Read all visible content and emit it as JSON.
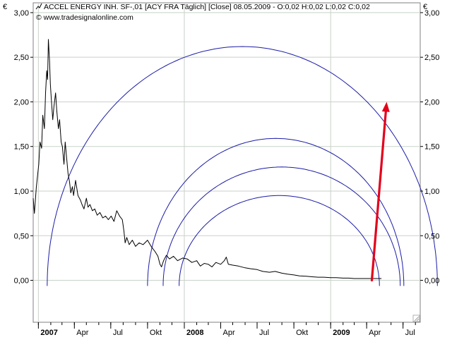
{
  "header": {
    "title": "ACCEL ENERGY  INH. SF-,01 [ACY FRA  Täglich] [Close] 08.05.2009 - O:0,02 H:0,02 L:0,02 C:0,02",
    "source": "© www.tradesignalonline.com",
    "currency_left": "€",
    "currency_right": "€"
  },
  "chart_data": {
    "type": "line",
    "title": "ACCEL ENERGY  INH. SF-,01 [ACY FRA  Täglich] [Close] 08.05.2009 - O:0,02 H:0,02 L:0,02 C:0,02",
    "xlabel": "",
    "ylabel": "€",
    "ylim": [
      -0.47,
      3.11
    ],
    "xlim": [
      "2006-12-19",
      "2009-08-13"
    ],
    "grid": true,
    "y_ticks": [
      {
        "value": 0.0,
        "label": "0,00"
      },
      {
        "value": 0.5,
        "label": "0,50"
      },
      {
        "value": 1.0,
        "label": "1,00"
      },
      {
        "value": 1.5,
        "label": "1,50"
      },
      {
        "value": 2.0,
        "label": "2,00"
      },
      {
        "value": 2.5,
        "label": "2,50"
      },
      {
        "value": 3.0,
        "label": "3,00"
      }
    ],
    "x_ticks": [
      {
        "date": "2007-01-01",
        "label": "2007",
        "bold": true
      },
      {
        "date": "2007-04-01",
        "label": "Apr",
        "bold": false
      },
      {
        "date": "2007-07-01",
        "label": "Jul",
        "bold": false
      },
      {
        "date": "2007-10-01",
        "label": "Okt",
        "bold": false
      },
      {
        "date": "2008-01-01",
        "label": "2008",
        "bold": true
      },
      {
        "date": "2008-04-01",
        "label": "Apr",
        "bold": false
      },
      {
        "date": "2008-07-01",
        "label": "Jul",
        "bold": false
      },
      {
        "date": "2008-10-01",
        "label": "Okt",
        "bold": false
      },
      {
        "date": "2009-01-01",
        "label": "2009",
        "bold": true
      },
      {
        "date": "2009-04-01",
        "label": "Apr",
        "bold": false
      },
      {
        "date": "2009-07-01",
        "label": "Jul",
        "bold": false
      }
    ],
    "x_gridlines": [
      "2007-01-01",
      "2008-01-01",
      "2009-01-01"
    ],
    "series": [
      {
        "color": "#000000",
        "points": [
          [
            "2006-12-19",
            0.92
          ],
          [
            "2006-12-22",
            0.75
          ],
          [
            "2006-12-27",
            1.05
          ],
          [
            "2007-01-02",
            1.3
          ],
          [
            "2007-01-05",
            1.55
          ],
          [
            "2007-01-09",
            1.48
          ],
          [
            "2007-01-12",
            1.85
          ],
          [
            "2007-01-16",
            1.7
          ],
          [
            "2007-01-19",
            2.1
          ],
          [
            "2007-01-22",
            2.35
          ],
          [
            "2007-01-24",
            2.25
          ],
          [
            "2007-01-26",
            2.7
          ],
          [
            "2007-01-29",
            2.45
          ],
          [
            "2007-01-31",
            2.2
          ],
          [
            "2007-02-02",
            2.05
          ],
          [
            "2007-02-06",
            1.8
          ],
          [
            "2007-02-09",
            1.95
          ],
          [
            "2007-02-13",
            2.1
          ],
          [
            "2007-02-16",
            1.9
          ],
          [
            "2007-02-20",
            1.7
          ],
          [
            "2007-02-23",
            1.8
          ],
          [
            "2007-02-27",
            1.55
          ],
          [
            "2007-03-02",
            1.5
          ],
          [
            "2007-03-06",
            1.3
          ],
          [
            "2007-03-09",
            1.55
          ],
          [
            "2007-03-13",
            1.35
          ],
          [
            "2007-03-16",
            1.2
          ],
          [
            "2007-03-20",
            1.1
          ],
          [
            "2007-03-23",
            0.98
          ],
          [
            "2007-03-27",
            1.05
          ],
          [
            "2007-03-30",
            0.95
          ],
          [
            "2007-04-04",
            1.12
          ],
          [
            "2007-04-10",
            0.95
          ],
          [
            "2007-04-16",
            0.9
          ],
          [
            "2007-04-20",
            0.85
          ],
          [
            "2007-04-25",
            0.8
          ],
          [
            "2007-05-01",
            0.92
          ],
          [
            "2007-05-05",
            0.82
          ],
          [
            "2007-05-10",
            0.85
          ],
          [
            "2007-05-16",
            0.78
          ],
          [
            "2007-05-22",
            0.8
          ],
          [
            "2007-05-28",
            0.73
          ],
          [
            "2007-06-04",
            0.76
          ],
          [
            "2007-06-11",
            0.7
          ],
          [
            "2007-06-18",
            0.72
          ],
          [
            "2007-06-25",
            0.68
          ],
          [
            "2007-07-02",
            0.72
          ],
          [
            "2007-07-09",
            0.66
          ],
          [
            "2007-07-16",
            0.78
          ],
          [
            "2007-07-23",
            0.72
          ],
          [
            "2007-07-30",
            0.68
          ],
          [
            "2007-08-03",
            0.55
          ],
          [
            "2007-08-06",
            0.42
          ],
          [
            "2007-08-10",
            0.48
          ],
          [
            "2007-08-16",
            0.4
          ],
          [
            "2007-08-24",
            0.45
          ],
          [
            "2007-09-01",
            0.38
          ],
          [
            "2007-09-10",
            0.42
          ],
          [
            "2007-09-20",
            0.4
          ],
          [
            "2007-10-01",
            0.45
          ],
          [
            "2007-10-10",
            0.38
          ],
          [
            "2007-10-20",
            0.32
          ],
          [
            "2007-10-27",
            0.27
          ],
          [
            "2007-11-01",
            0.18
          ],
          [
            "2007-11-05",
            0.15
          ],
          [
            "2007-11-10",
            0.22
          ],
          [
            "2007-11-17",
            0.28
          ],
          [
            "2007-11-25",
            0.24
          ],
          [
            "2007-12-05",
            0.27
          ],
          [
            "2007-12-15",
            0.22
          ],
          [
            "2007-12-28",
            0.25
          ],
          [
            "2008-01-08",
            0.24
          ],
          [
            "2008-01-20",
            0.2
          ],
          [
            "2008-02-01",
            0.22
          ],
          [
            "2008-02-10",
            0.16
          ],
          [
            "2008-02-20",
            0.19
          ],
          [
            "2008-03-01",
            0.18
          ],
          [
            "2008-03-10",
            0.15
          ],
          [
            "2008-03-20",
            0.2
          ],
          [
            "2008-04-01",
            0.18
          ],
          [
            "2008-04-10",
            0.22
          ],
          [
            "2008-04-15",
            0.26
          ],
          [
            "2008-04-20",
            0.18
          ],
          [
            "2008-05-01",
            0.17
          ],
          [
            "2008-05-15",
            0.16
          ],
          [
            "2008-06-01",
            0.14
          ],
          [
            "2008-06-15",
            0.13
          ],
          [
            "2008-07-01",
            0.12
          ],
          [
            "2008-07-15",
            0.1
          ],
          [
            "2008-08-01",
            0.09
          ],
          [
            "2008-08-15",
            0.1
          ],
          [
            "2008-09-01",
            0.08
          ],
          [
            "2008-09-15",
            0.07
          ],
          [
            "2008-10-01",
            0.06
          ],
          [
            "2008-10-15",
            0.05
          ],
          [
            "2008-11-01",
            0.045
          ],
          [
            "2008-11-15",
            0.04
          ],
          [
            "2008-12-01",
            0.035
          ],
          [
            "2008-12-15",
            0.035
          ],
          [
            "2009-01-01",
            0.03
          ],
          [
            "2009-01-15",
            0.03
          ],
          [
            "2009-02-01",
            0.025
          ],
          [
            "2009-02-15",
            0.025
          ],
          [
            "2009-03-01",
            0.02
          ],
          [
            "2009-03-15",
            0.02
          ],
          [
            "2009-04-01",
            0.02
          ],
          [
            "2009-04-15",
            0.02
          ],
          [
            "2009-05-01",
            0.02
          ],
          [
            "2009-05-08",
            0.02
          ]
        ]
      }
    ],
    "annotations": {
      "arcs": [
        {
          "left": "2007-01-23",
          "right": "2009-09-25",
          "peak": 2.62,
          "color": "#1c1ca8"
        },
        {
          "left": "2007-10-01",
          "right": "2009-07-03",
          "peak": 1.59,
          "color": "#1c1ca8"
        },
        {
          "left": "2007-11-09",
          "right": "2009-06-24",
          "peak": 1.27,
          "color": "#1c1ca8"
        },
        {
          "left": "2007-12-19",
          "right": "2009-05-03",
          "peak": 0.95,
          "color": "#1c1ca8"
        }
      ],
      "arrow": {
        "from": [
          "2009-04-14",
          0.0
        ],
        "to": [
          "2009-05-21",
          2.0
        ],
        "color": "#e3001b"
      }
    }
  }
}
